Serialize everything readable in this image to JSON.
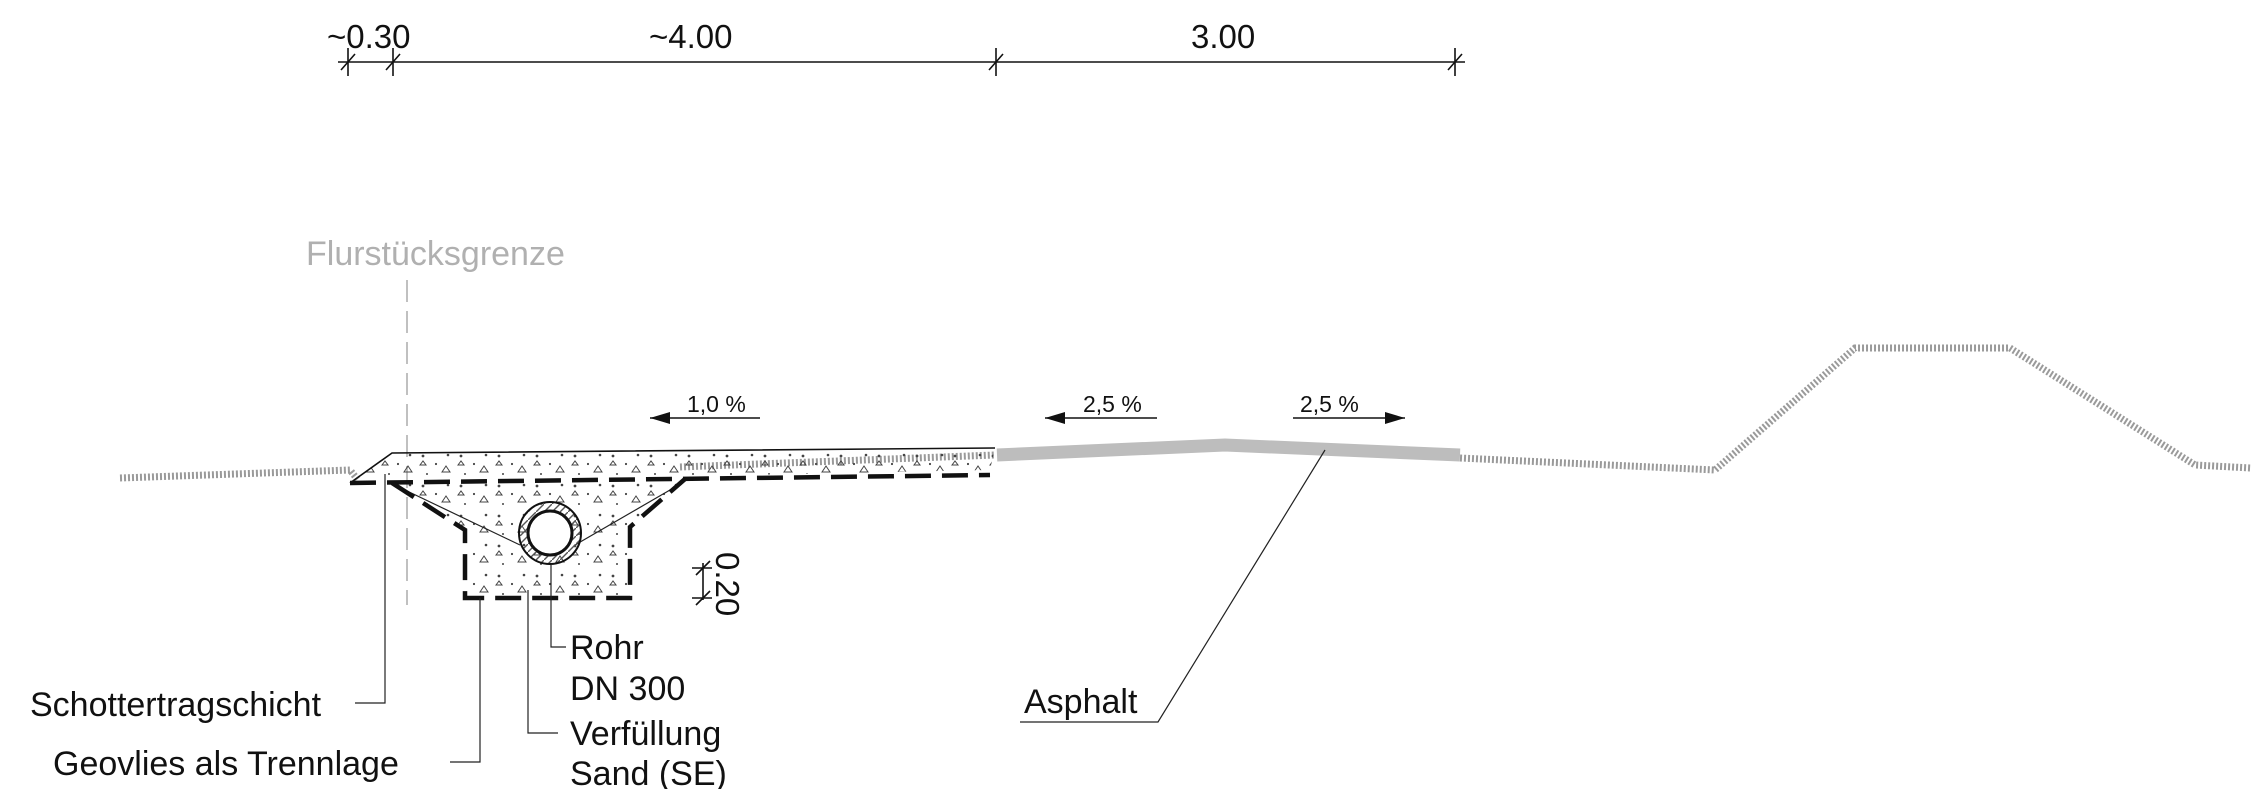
{
  "dimensions": {
    "d1": "~0.30",
    "d2": "~4.00",
    "d3": "3.00",
    "depth": "0.20"
  },
  "labels": {
    "property_line": "Flurstücksgrenze",
    "slope_left": "1,0 %",
    "slope_mid": "2,5 %",
    "slope_right": "2,5 %",
    "pipe_line1": "Rohr",
    "pipe_line2": "DN 300",
    "backfill_line1": "Verfüllung",
    "backfill_line2": "Sand (SE)",
    "base_course": "Schottertragschicht",
    "geotextile": "Geovlies als Trennlage",
    "asphalt": "Asphalt"
  },
  "colors": {
    "ink": "#111111",
    "ground": "#9a9a9a",
    "asphalt": "#bdbdbd",
    "property_line": "#b0b0b0"
  }
}
